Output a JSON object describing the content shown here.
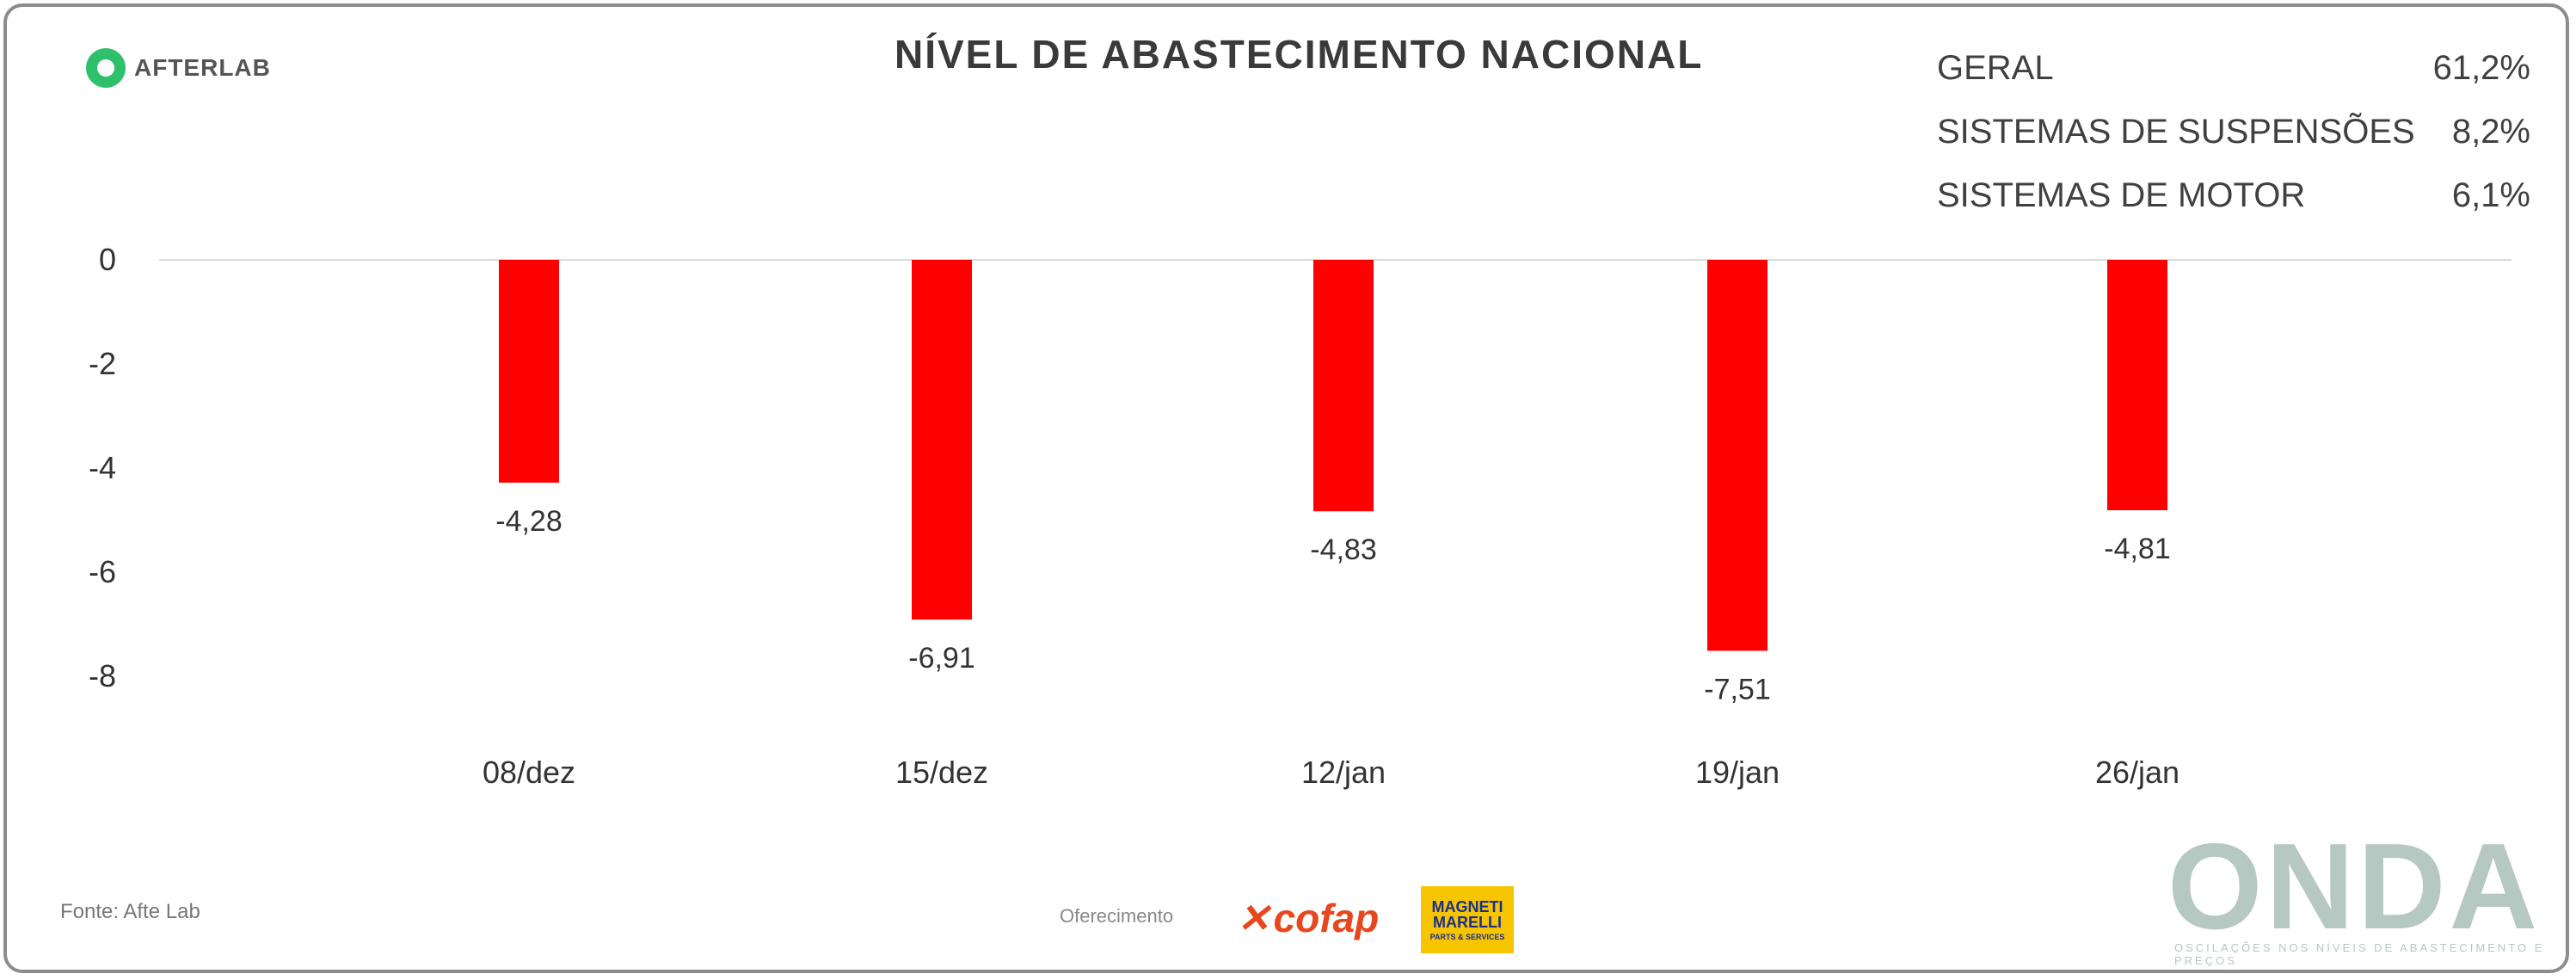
{
  "brand": {
    "logo_text": "AFTERLAB"
  },
  "title": "NÍVEL DE ABASTECIMENTO NACIONAL",
  "summary": [
    {
      "label": "GERAL",
      "value": "61,2%"
    },
    {
      "label": "SISTEMAS DE SUSPENSÕES",
      "value": "8,2%"
    },
    {
      "label": "SISTEMAS DE MOTOR",
      "value": "6,1%"
    }
  ],
  "chart_data": {
    "type": "bar",
    "categories": [
      "08/dez",
      "15/dez",
      "12/jan",
      "19/jan",
      "26/jan"
    ],
    "values": [
      -4.28,
      -6.91,
      -4.83,
      -7.51,
      -4.81
    ],
    "value_labels": [
      "-4,28",
      "-6,91",
      "-4,83",
      "-7,51",
      "-4,81"
    ],
    "y_ticks": [
      0,
      -2,
      -4,
      -6,
      -8
    ],
    "ylim": [
      -8,
      0
    ],
    "bar_color": "#ff0000",
    "grid": false
  },
  "footer": {
    "source": "Fonte: Afte Lab",
    "sponsor_label": "Oferecimento",
    "sponsor_cofap": "cofap",
    "sponsor_magneti_top": "MAGNETI",
    "sponsor_magneti_mid": "MARELLI",
    "sponsor_magneti_bottom": "PARTS & SERVICES",
    "onda": "ONDA",
    "onda_sub": "OSCILAÇÕES NOS NÍVEIS DE ABASTECIMENTO E PREÇOS"
  }
}
